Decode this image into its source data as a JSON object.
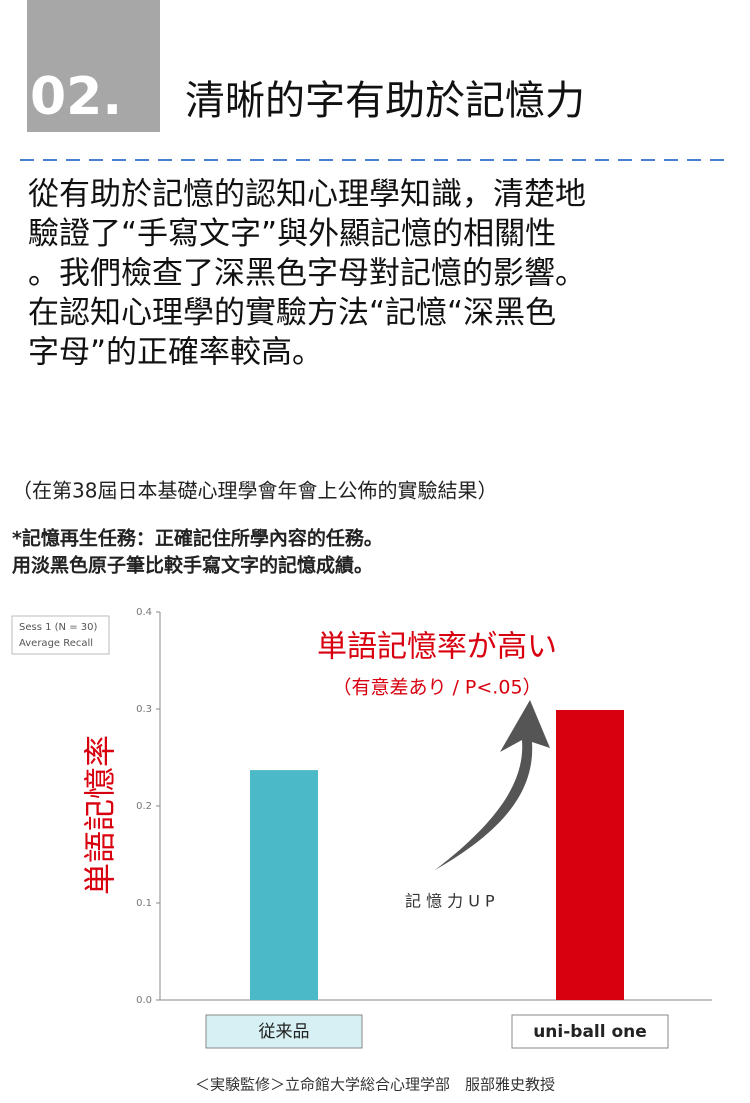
{
  "header": {
    "number": "02.",
    "title": "清晰的字有助於記憶力"
  },
  "body": [
    "從有助於記憶的認知心理學知識，清楚地",
    "驗證了“手寫文字”與外顯記憶的相關性",
    "。我們檢查了深黑色字母對記憶的影響。",
    "在認知心理學的實驗方法“記憶“深黑色",
    "字母”的正確率較高。"
  ],
  "source_note": "（在第38屆日本基礎心理學會年會上公佈的實驗結果）",
  "task_notes": [
    "*記憶再生任務：正確記住所學內容的任務。",
    "用淡黑色原子筆比較手寫文字的記憶成績。"
  ],
  "chart_data": {
    "type": "bar",
    "ylabel": "単語記憶率",
    "legend_text": [
      "Sess 1 (N = 30)",
      "Average Recall"
    ],
    "categories": [
      "従来品",
      "uni-ball one"
    ],
    "values": [
      0.237,
      0.299
    ],
    "colors": [
      "#4bb9c7",
      "#d8000e"
    ],
    "ylim": [
      0,
      0.4
    ],
    "yticks": [
      {
        "value": 0,
        "label": "0.0"
      },
      0.1,
      0.2,
      0.3,
      0.4
    ],
    "annotations": [
      "単語記憶率が高い",
      "（有意差あり / P<.05）",
      "記 憶 力 U P"
    ]
  },
  "footer": "＜実験監修＞立命館大学総合心理学部　服部雅史教授"
}
